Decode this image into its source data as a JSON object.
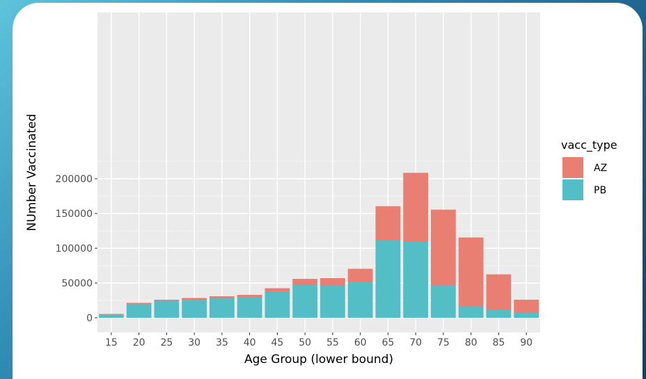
{
  "chart_data": {
    "type": "bar",
    "stacked": true,
    "xlabel": "Age Group (lower bound)",
    "ylabel": "NUmber Vaccinated",
    "ylim": [
      0,
      210000
    ],
    "yticks": [
      0,
      50000,
      100000,
      150000,
      200000
    ],
    "categories": [
      "15",
      "20",
      "25",
      "30",
      "35",
      "40",
      "45",
      "50",
      "55",
      "60",
      "65",
      "70",
      "75",
      "80",
      "85",
      "90"
    ],
    "series": [
      {
        "name": "PB",
        "color": "#53bec5",
        "values": [
          4500,
          20000,
          24500,
          26000,
          28500,
          30000,
          38000,
          48000,
          46500,
          52000,
          112000,
          109000,
          46500,
          16500,
          12000,
          7000
        ]
      },
      {
        "name": "AZ",
        "color": "#e87f72",
        "values": [
          1000,
          1500,
          1500,
          2500,
          2500,
          3000,
          4500,
          8000,
          10500,
          18500,
          48500,
          99500,
          109000,
          99000,
          50500,
          19000
        ]
      }
    ],
    "grid": true,
    "legend": {
      "title": "vacc_type",
      "position": "right",
      "entries": [
        "AZ",
        "PB"
      ]
    }
  }
}
